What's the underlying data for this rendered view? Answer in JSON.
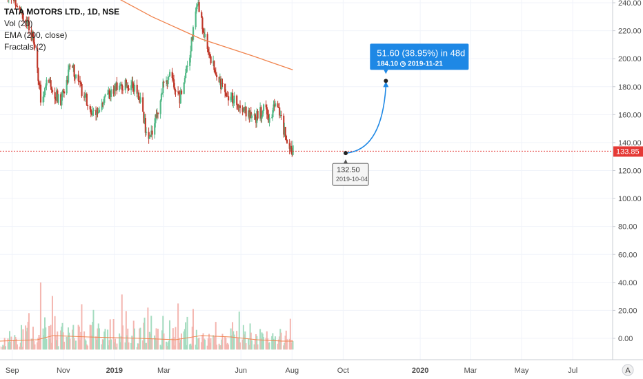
{
  "legend": {
    "symbol": "TATA MOTORS LTD., 1D, NSE",
    "indicators": [
      "Vol (20)",
      "EMA (200, close)",
      "Fractals (2)"
    ]
  },
  "colors": {
    "up": "#53b987",
    "down": "#c0392b",
    "ema": "#f0834d",
    "projection": "#1e88e5",
    "current_line": "#e53935",
    "grid": "#f0f3fa"
  },
  "chart_data": {
    "type": "candlestick",
    "symbol": "TATA MOTORS LTD.",
    "interval": "1D",
    "exchange": "NSE",
    "ylim": [
      -8,
      242
    ],
    "y_ticks": [
      0,
      20,
      40,
      60,
      80,
      100,
      120,
      140,
      160,
      180,
      200,
      220,
      240
    ],
    "x_labels": [
      {
        "label": "Sep",
        "x": "2018-09-01"
      },
      {
        "label": "Nov",
        "x": "2018-11-01"
      },
      {
        "label": "2019",
        "x": "2019-01-01"
      },
      {
        "label": "Mar",
        "x": "2019-03-01"
      },
      {
        "label": "Jun",
        "x": "2019-06-01"
      },
      {
        "label": "Aug",
        "x": "2019-08-01"
      },
      {
        "label": "Oct",
        "x": "2019-10-01"
      },
      {
        "label": "2020",
        "x": "2020-01-01"
      },
      {
        "label": "Mar",
        "x": "2020-03-01"
      },
      {
        "label": "May",
        "x": "2020-05-01"
      },
      {
        "label": "Jul",
        "x": "2020-07-01"
      }
    ],
    "x_range": [
      "2018-08-01",
      "2020-07-15"
    ],
    "price_path": [
      {
        "date": "2018-08-15",
        "close": 255
      },
      {
        "date": "2018-09-10",
        "close": 238
      },
      {
        "date": "2018-09-28",
        "close": 210
      },
      {
        "date": "2018-10-05",
        "close": 172
      },
      {
        "date": "2018-10-15",
        "close": 185
      },
      {
        "date": "2018-10-28",
        "close": 168
      },
      {
        "date": "2018-11-10",
        "close": 196
      },
      {
        "date": "2018-11-25",
        "close": 175
      },
      {
        "date": "2018-12-05",
        "close": 160
      },
      {
        "date": "2018-12-20",
        "close": 170
      },
      {
        "date": "2019-01-05",
        "close": 180
      },
      {
        "date": "2019-01-20",
        "close": 182
      },
      {
        "date": "2019-02-01",
        "close": 172
      },
      {
        "date": "2019-02-10",
        "close": 140
      },
      {
        "date": "2019-02-20",
        "close": 160
      },
      {
        "date": "2019-03-01",
        "close": 182
      },
      {
        "date": "2019-03-10",
        "close": 188
      },
      {
        "date": "2019-03-20",
        "close": 172
      },
      {
        "date": "2019-04-01",
        "close": 205
      },
      {
        "date": "2019-04-10",
        "close": 240
      },
      {
        "date": "2019-04-20",
        "close": 212
      },
      {
        "date": "2019-05-01",
        "close": 190
      },
      {
        "date": "2019-05-15",
        "close": 175
      },
      {
        "date": "2019-06-01",
        "close": 168
      },
      {
        "date": "2019-06-15",
        "close": 155
      },
      {
        "date": "2019-06-30",
        "close": 165
      },
      {
        "date": "2019-07-05",
        "close": 155
      },
      {
        "date": "2019-07-12",
        "close": 172
      },
      {
        "date": "2019-07-22",
        "close": 150
      },
      {
        "date": "2019-08-02",
        "close": 133.85
      }
    ],
    "volume_path": [
      {
        "date": "2018-08-15",
        "value": 3
      },
      {
        "date": "2018-10-05",
        "value": 48
      },
      {
        "date": "2019-02-10",
        "value": 30
      },
      {
        "date": "2019-04-05",
        "value": 29
      },
      {
        "date": "2019-07-30",
        "value": 22
      }
    ],
    "ema200": [
      {
        "date": "2018-12-15",
        "close": 250
      },
      {
        "date": "2019-02-15",
        "close": 230
      },
      {
        "date": "2019-04-15",
        "close": 214
      },
      {
        "date": "2019-06-15",
        "close": 202
      },
      {
        "date": "2019-08-02",
        "close": 192
      }
    ],
    "volume_ma": [
      {
        "date": "2018-08-15",
        "value": -2
      },
      {
        "date": "2018-10-01",
        "value": -1
      },
      {
        "date": "2018-10-20",
        "value": 2
      },
      {
        "date": "2018-12-01",
        "value": 1
      },
      {
        "date": "2019-02-01",
        "value": 0
      },
      {
        "date": "2019-03-15",
        "value": -1
      },
      {
        "date": "2019-04-15",
        "value": 2
      },
      {
        "date": "2019-05-20",
        "value": 1
      },
      {
        "date": "2019-06-20",
        "value": -1
      },
      {
        "date": "2019-07-20",
        "value": -2
      },
      {
        "date": "2019-08-02",
        "value": -2
      }
    ],
    "current_price": {
      "value": 133.85,
      "label": "133.85"
    },
    "projection": {
      "start": {
        "date": "2019-10-04",
        "value": 132.5
      },
      "end": {
        "date": "2019-11-21",
        "value": 184.1
      },
      "start_label": {
        "price": "132.50",
        "date": "2019-10-04"
      },
      "end_label": {
        "headline": "51.60 (38.95%) in 48d",
        "price": "184.10",
        "date": "2019-11-21"
      }
    },
    "axis_corner": "A"
  }
}
